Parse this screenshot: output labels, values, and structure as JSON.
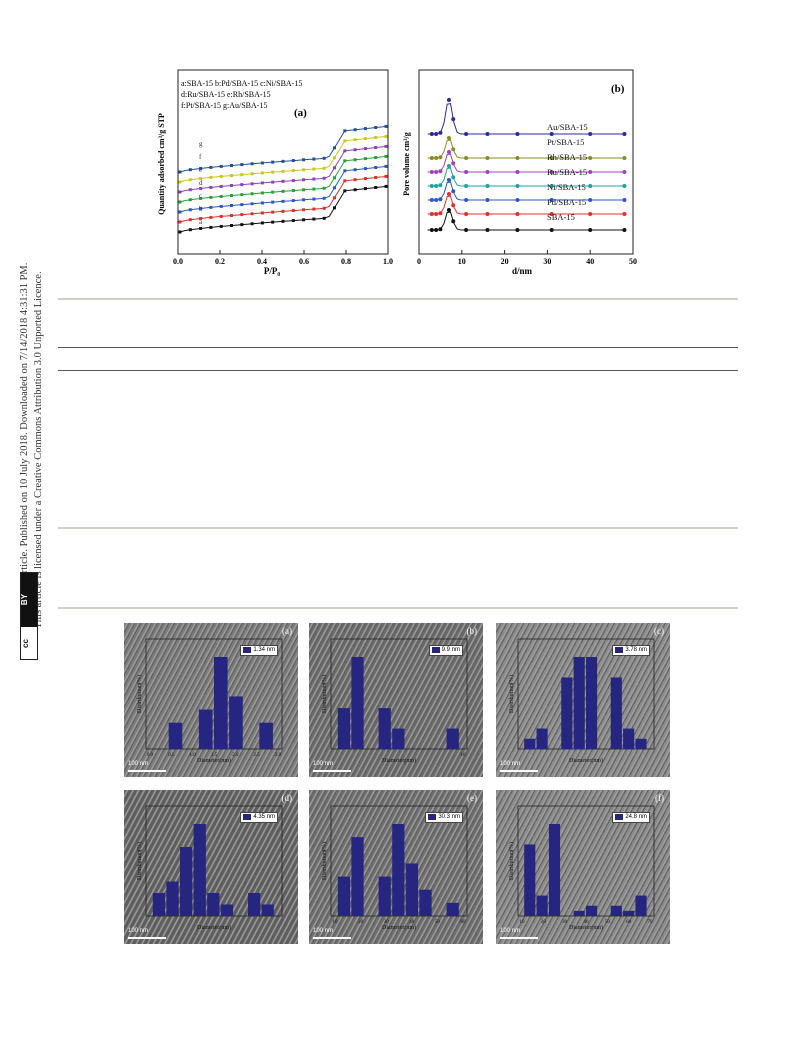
{
  "sidebar": {
    "line1": "Open Access Article. Published on 10 July 2018. Downloaded on 7/14/2018 4:31:31 PM.",
    "line2": "This article is licensed under a Creative Commons Attribution 3.0 Unported Licence.",
    "badge_cc": "cc",
    "badge_by": "BY"
  },
  "figure_top": {
    "panel_a": {
      "letter": "(a)",
      "ylabel": "Quantity adsorbed cm³/g STP",
      "xlabel": "P/P₀",
      "legend": [
        "a:SBA-15  b:Pd/SBA-15  c:Ni/SBA-15",
        "d:Ru/SBA-15  e:Rh/SBA-15",
        "f:Pt/SBA-15   g:Au/SBA-15"
      ],
      "xticks": [
        "0.0",
        "0.2",
        "0.4",
        "0.6",
        "0.8",
        "1.0"
      ],
      "curve_labels": [
        "g",
        "f",
        "e",
        "d",
        "c",
        "b",
        "a"
      ]
    },
    "panel_b": {
      "letter": "(b)",
      "ylabel": "Pore volume cm³/g",
      "xlabel": "d/nm",
      "xticks": [
        "0",
        "10",
        "20",
        "30",
        "40",
        "50"
      ],
      "series_labels": [
        "Au/SBA-15",
        "Pt/SBA-15",
        "Rh/SBA-15",
        "Ru/SBA-15",
        "Ni/SBA-15",
        "Pd/SBA-15",
        "SBA-15"
      ]
    }
  },
  "chart_data": [
    {
      "type": "line",
      "panel": "(a)",
      "xlabel": "P/P₀",
      "ylabel": "Quantity adsorbed cm³/g STP",
      "xlim": [
        0,
        1
      ],
      "series": [
        {
          "name": "a:SBA-15",
          "color": "#111111",
          "offset": 0
        },
        {
          "name": "b:Pd/SBA-15",
          "color": "#e0302a",
          "offset": 1
        },
        {
          "name": "c:Ni/SBA-15",
          "color": "#2a58c8",
          "offset": 2
        },
        {
          "name": "d:Ru/SBA-15",
          "color": "#2aa038",
          "offset": 3
        },
        {
          "name": "e:Rh/SBA-15",
          "color": "#9040c0",
          "offset": 4
        },
        {
          "name": "f:Pt/SBA-15",
          "color": "#c8c820",
          "offset": 5
        },
        {
          "name": "g:Au/SBA-15",
          "color": "#2050a0",
          "offset": 6
        }
      ]
    },
    {
      "type": "line",
      "panel": "(b)",
      "xlabel": "d/nm",
      "ylabel": "Pore volume cm³/g",
      "xlim": [
        0,
        50
      ],
      "series": [
        {
          "name": "SBA-15",
          "color": "#111111"
        },
        {
          "name": "Pd/SBA-15",
          "color": "#e0302a"
        },
        {
          "name": "Ni/SBA-15",
          "color": "#2a58c8"
        },
        {
          "name": "Ru/SBA-15",
          "color": "#20a0a0"
        },
        {
          "name": "Rh/SBA-15",
          "color": "#a040c0"
        },
        {
          "name": "Pt/SBA-15",
          "color": "#8a8a20"
        },
        {
          "name": "Au/SBA-15",
          "color": "#2a2aa0"
        }
      ]
    },
    {
      "type": "bar",
      "panel": "(a)",
      "legend": "1.34 nm",
      "ylabel": "Distribution(%)",
      "xlabel": "Diameter(nm)",
      "xticks": [
        "0.0",
        "0.5",
        "1.0",
        "1.5",
        "2.0",
        "2.5",
        "3.0"
      ],
      "values": [
        0,
        2,
        0,
        3,
        7,
        4,
        0,
        2
      ]
    },
    {
      "type": "bar",
      "panel": "(b)",
      "legend": "9.9 nm",
      "ylabel": "Distribution(%)",
      "xlabel": "Diameter(nm)",
      "xticks": [
        "",
        "",
        "",
        "",
        "",
        "",
        "",
        "16"
      ],
      "values": [
        4,
        9,
        0,
        4,
        2,
        0,
        0,
        0,
        2
      ]
    },
    {
      "type": "bar",
      "panel": "(c)",
      "legend": "3.78 nm",
      "ylabel": "Distribution(%)",
      "xlabel": "Diameter(nm)",
      "xticks": [],
      "values": [
        1,
        2,
        0,
        7,
        9,
        9,
        0,
        7,
        2,
        1
      ]
    },
    {
      "type": "bar",
      "panel": "(d)",
      "legend": "4.35 nm",
      "ylabel": "Distribution(%)",
      "xlabel": "Diameter(nm)",
      "xticks": [],
      "values": [
        2,
        3,
        6,
        8,
        2,
        1,
        0,
        2,
        1
      ]
    },
    {
      "type": "bar",
      "panel": "(e)",
      "legend": "30.3 nm",
      "ylabel": "Distribution(%)",
      "xlabel": "Diameter(nm)",
      "xticks": [
        "10",
        "20",
        "30",
        "40",
        "50",
        "60"
      ],
      "values": [
        3,
        6,
        0,
        3,
        7,
        4,
        2,
        0,
        1
      ]
    },
    {
      "type": "bar",
      "panel": "(f)",
      "legend": "24.8 nm",
      "ylabel": "Distribution(%)",
      "xlabel": "Diameter(nm)",
      "xticks": [
        "10",
        "20",
        "30",
        "40",
        "50",
        "60",
        "70"
      ],
      "values": [
        7,
        2,
        9,
        0,
        0.5,
        1,
        0,
        1,
        0.5,
        2
      ]
    }
  ],
  "tem_panels": [
    {
      "letter": "(a)",
      "scale": "100 nm"
    },
    {
      "letter": "(b)",
      "scale": "100 nm"
    },
    {
      "letter": "(c)",
      "scale": "100 nm"
    },
    {
      "letter": "(d)",
      "scale": "100 nm"
    },
    {
      "letter": "(e)",
      "scale": "100 nm"
    },
    {
      "letter": "(f)",
      "scale": "100 nm"
    }
  ],
  "colors": {
    "bar": "#262680",
    "rule_light": "#cfd0c8",
    "rule_dark": "#555555"
  }
}
